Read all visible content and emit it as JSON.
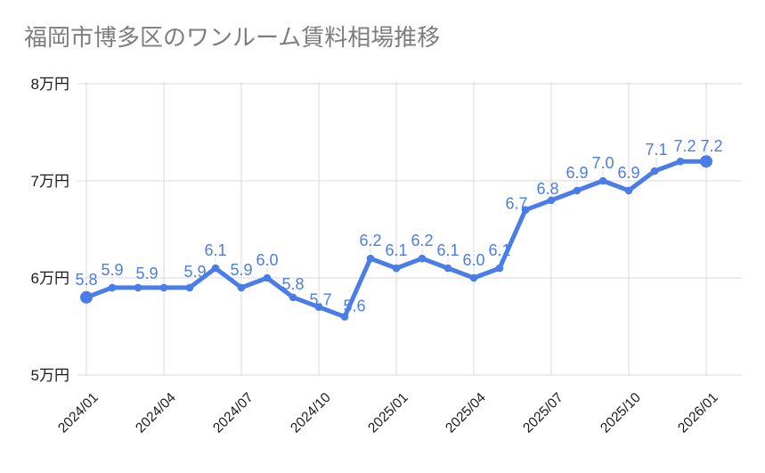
{
  "chart_data": {
    "type": "line",
    "title": "福岡市博多区のワンルーム賃料相場推移",
    "y_unit": "万円",
    "x": [
      "2024/01",
      "2024/02",
      "2024/03",
      "2024/04",
      "2024/05",
      "2024/06",
      "2024/07",
      "2024/08",
      "2024/09",
      "2024/10",
      "2024/11",
      "2024/12",
      "2025/01",
      "2025/02",
      "2025/03",
      "2025/04",
      "2025/05",
      "2025/06",
      "2025/07",
      "2025/08",
      "2025/09",
      "2025/10",
      "2025/11",
      "2025/12",
      "2026/01"
    ],
    "values": [
      5.8,
      5.9,
      5.9,
      5.9,
      5.9,
      6.1,
      5.9,
      6.0,
      5.8,
      5.7,
      5.6,
      6.2,
      6.1,
      6.2,
      6.1,
      6.0,
      6.1,
      6.7,
      6.8,
      6.9,
      7.0,
      6.9,
      7.1,
      7.2,
      7.2
    ],
    "data_labels": [
      "5.8",
      "5.9",
      "5.9",
      null,
      "5.9",
      "6.1",
      "5.9",
      "6.0",
      "5.8",
      "5.7",
      "5.6",
      "6.2",
      "6.1",
      "6.2",
      "6.1",
      "6.0",
      "6.1",
      "6.7",
      "6.8",
      "6.9",
      "7.0",
      "6.9",
      "7.1",
      "7.2",
      "7.2"
    ],
    "x_ticks": [
      "2024/01",
      "2024/04",
      "2024/07",
      "2024/10",
      "2025/01",
      "2025/04",
      "2025/07",
      "2025/10",
      "2026/01"
    ],
    "y_ticks": [
      "5万円",
      "6万円",
      "7万円",
      "8万円"
    ],
    "ylim": [
      5,
      8
    ],
    "grid": true,
    "legend": "none",
    "colors": {
      "series": "#4a7de8",
      "title": "#7d7d7d",
      "axis_text": "#1a1a1a",
      "gridline": "#d9d9d9",
      "label_stem": "#d3dcf0",
      "background": "#ffffff"
    }
  }
}
